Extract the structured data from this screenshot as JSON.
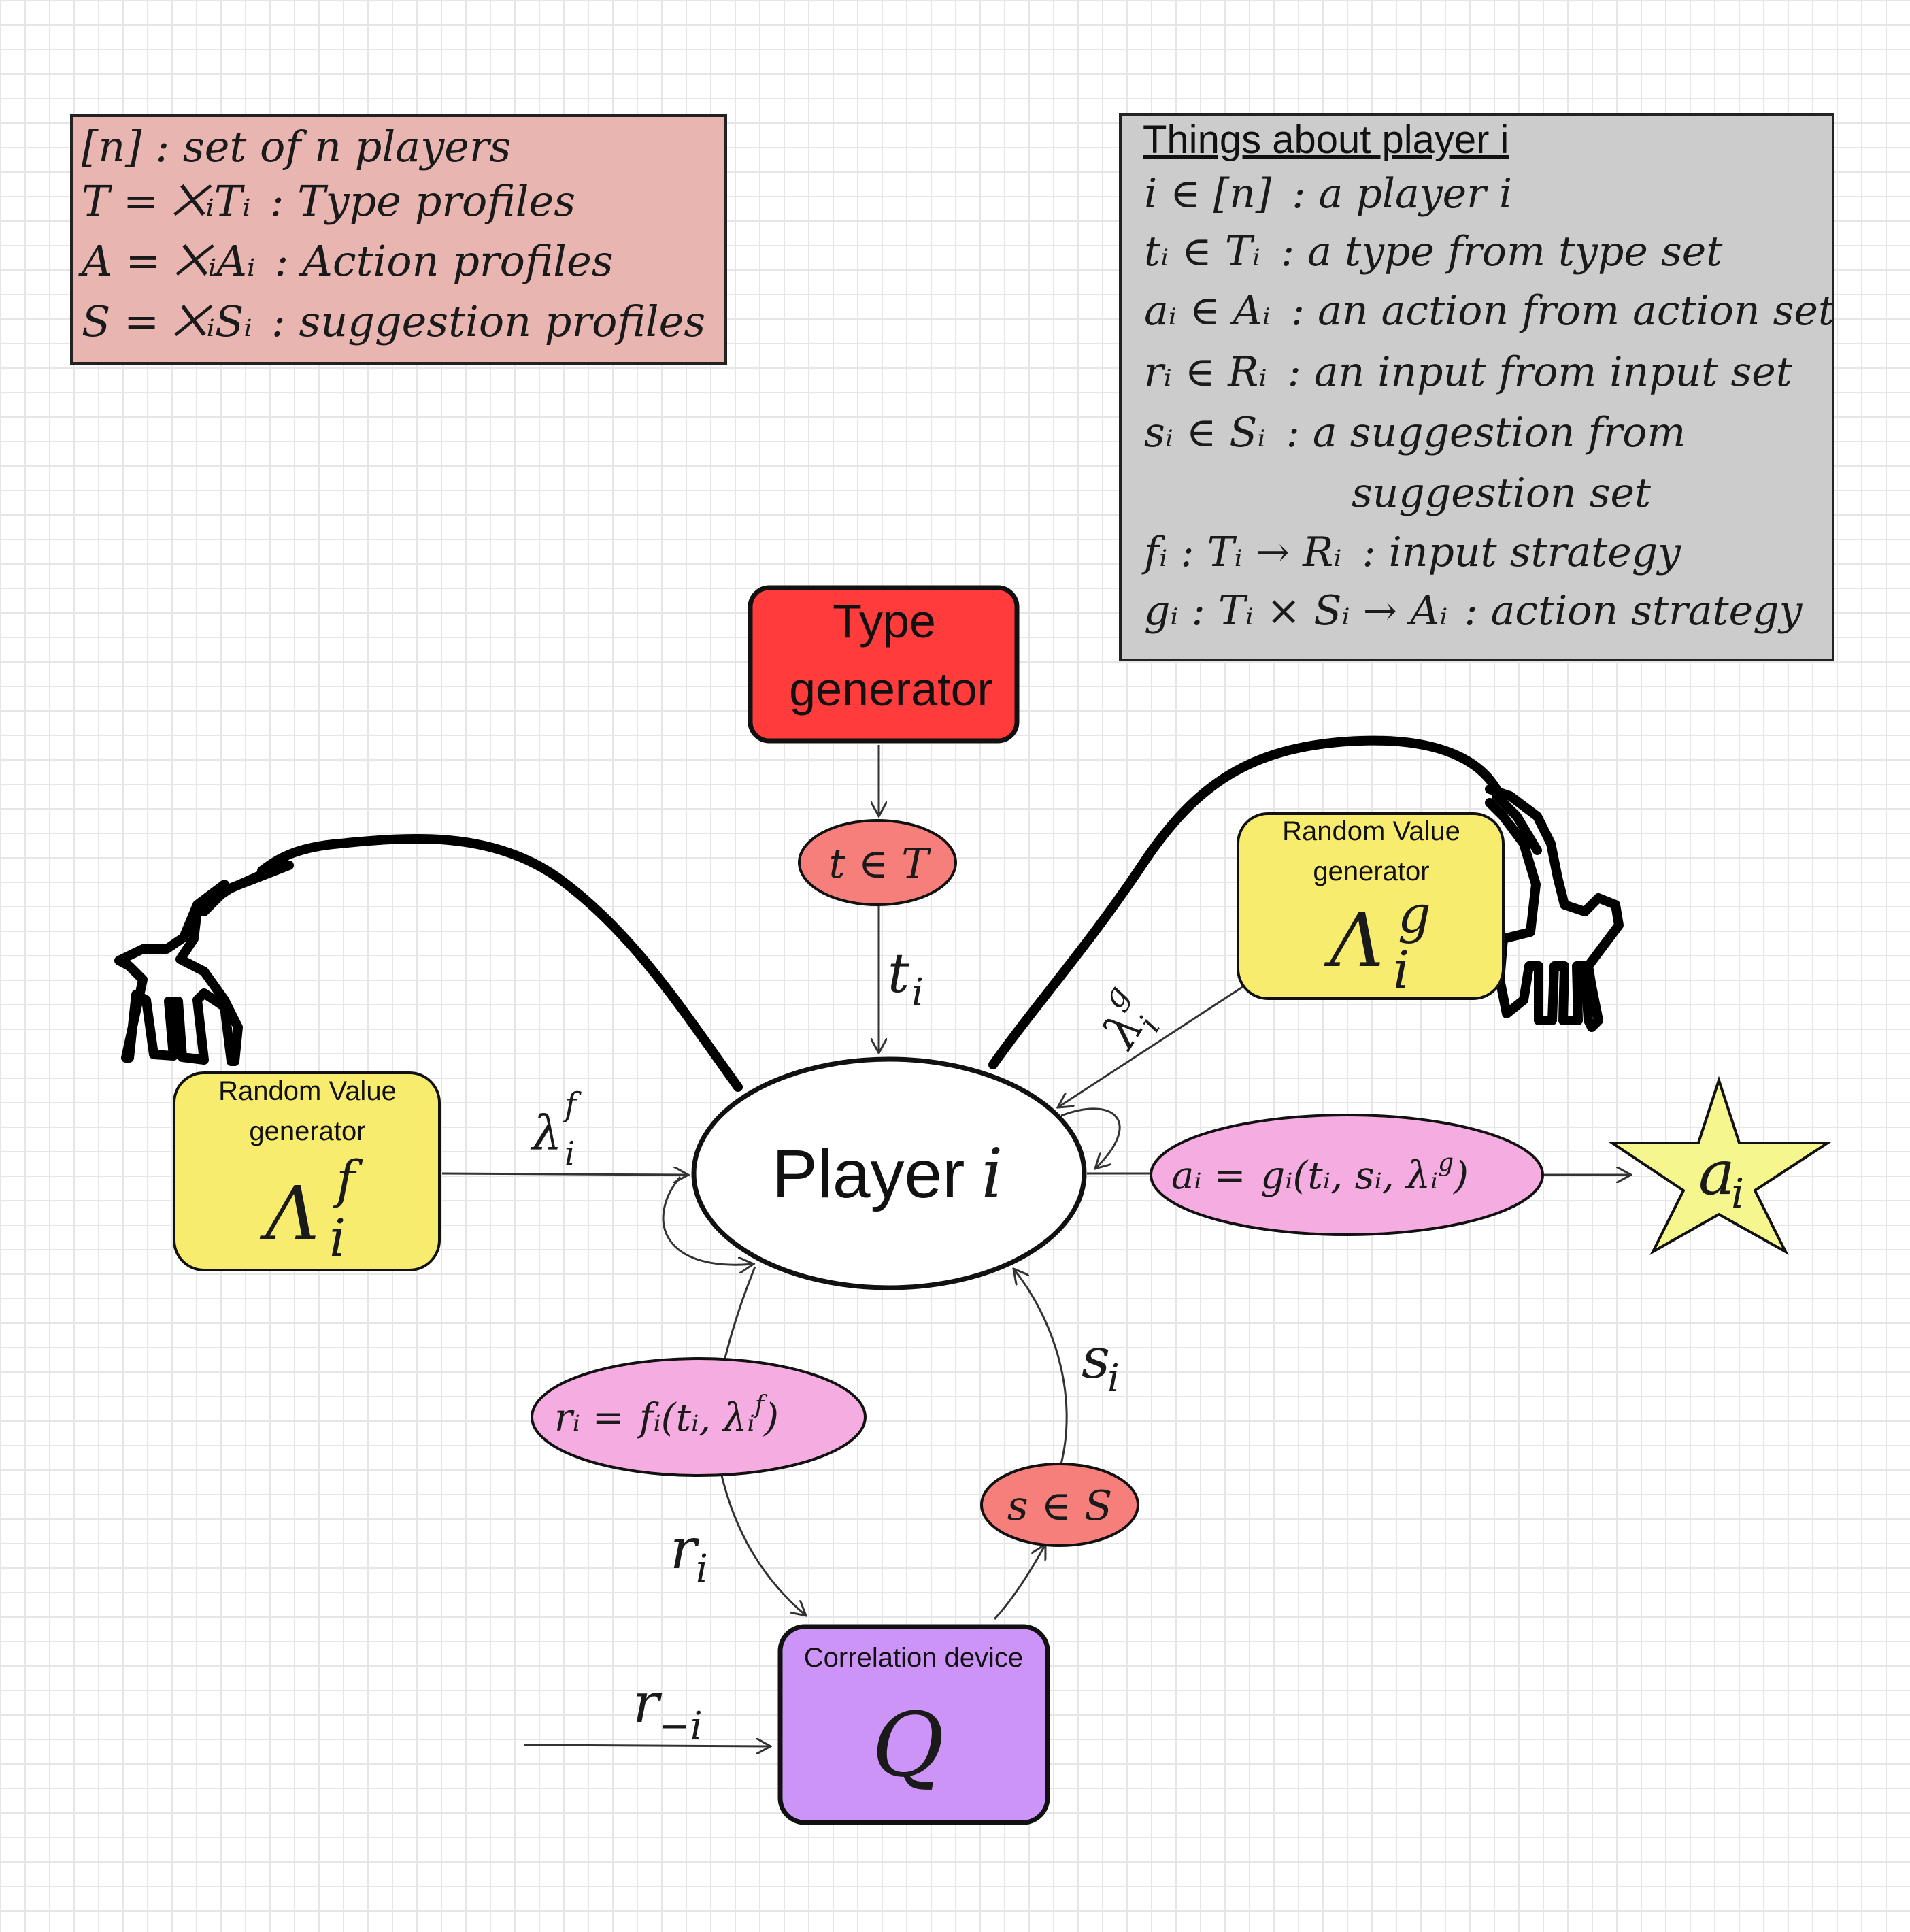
{
  "legend_profiles": {
    "line1_sym": "[n]",
    "line1_text": ": set of n players",
    "line2_sym": "T = ⨉ᵢTᵢ",
    "line2_text": ": Type profiles",
    "line3_sym": "A = ⨉ᵢAᵢ",
    "line3_text": ": Action profiles",
    "line4_sym": "S = ⨉ᵢSᵢ",
    "line4_text": ": suggestion profiles"
  },
  "legend_player": {
    "title": "Things about player i",
    "items": [
      {
        "sym": "i ∈ [n]",
        "text": ": a player i"
      },
      {
        "sym": "tᵢ ∈ Tᵢ",
        "text": ": a type from type set"
      },
      {
        "sym": "aᵢ ∈ Aᵢ",
        "text": ": an action from action set"
      },
      {
        "sym": "rᵢ ∈ Rᵢ",
        "text": ": an input from input set"
      },
      {
        "sym": "sᵢ ∈ Sᵢ",
        "text": ": a suggestion from"
      },
      {
        "sym": "",
        "text": "suggestion set"
      },
      {
        "sym": "fᵢ : Tᵢ → Rᵢ",
        "text": ": input strategy"
      },
      {
        "sym": "gᵢ : Tᵢ × Sᵢ → Aᵢ",
        "text": ": action strategy"
      }
    ]
  },
  "nodes": {
    "type_generator": {
      "line1": "Type",
      "line2": "generator"
    },
    "type_set": "t ∈ T",
    "player": {
      "word": "Player",
      "sym": "i"
    },
    "rvg_f": {
      "line1": "Random Value",
      "line2": "generator",
      "sym": "Λ",
      "sup": "f",
      "sub": "i"
    },
    "rvg_g": {
      "line1": "Random Value",
      "line2": "generator",
      "sym": "Λ",
      "sup": "g",
      "sub": "i"
    },
    "action_formula": {
      "lhs": "aᵢ =",
      "fn": "gᵢ",
      "args": "(tᵢ, sᵢ, λᵢ",
      "args_sup": "g",
      "close": ")"
    },
    "input_formula": {
      "lhs": "rᵢ =",
      "fn": "fᵢ",
      "args": "(tᵢ, λᵢ",
      "args_sup": "f",
      "close": ")"
    },
    "suggestion_set": "s ∈ S",
    "correlation_device": {
      "label": "Correlation device",
      "sym": "Q"
    },
    "action_star": {
      "sym": "a",
      "sub": "i"
    }
  },
  "edge_labels": {
    "t_i": {
      "sym": "t",
      "sub": "i"
    },
    "lambda_f": {
      "sym": "λ",
      "sup": "f",
      "sub": "i"
    },
    "lambda_g": {
      "sym": "λ",
      "sup": "g",
      "sub": "i"
    },
    "s_i": {
      "sym": "s",
      "sub": "i"
    },
    "r_i": {
      "sym": "r",
      "sub": "i"
    },
    "r_minus_i": {
      "sym": "r",
      "sub": "−i"
    }
  },
  "colors": {
    "profiles_box": "#e8b5b0",
    "player_box": "#cccccc",
    "type_generator": "#ff3b3b",
    "set_ellipse": "#f77f7b",
    "random_value": "#f7ec6e",
    "formula_ellipse": "#f5ace0",
    "correlation": "#cc94f7",
    "star": "#f5f78e"
  }
}
